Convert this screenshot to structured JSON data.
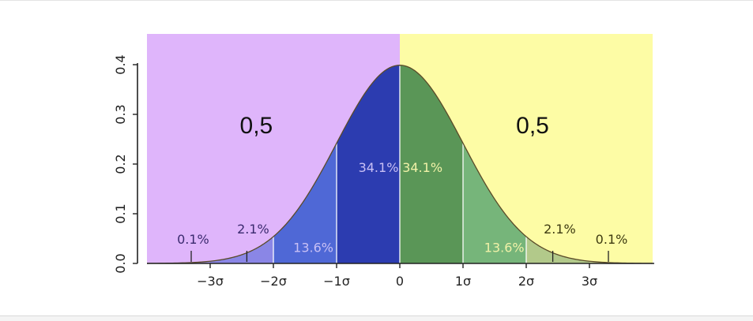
{
  "chart_data": {
    "type": "area",
    "title": "",
    "xlabel": "",
    "ylabel": "",
    "distribution": "standard normal",
    "xlim": [
      -4,
      4
    ],
    "ylim": [
      0,
      0.45
    ],
    "grid": false,
    "x_ticks": [
      {
        "value": -3,
        "label": "−3σ"
      },
      {
        "value": -2,
        "label": "−2σ"
      },
      {
        "value": -1,
        "label": "−1σ"
      },
      {
        "value": 0,
        "label": "0"
      },
      {
        "value": 1,
        "label": "1σ"
      },
      {
        "value": 2,
        "label": "2σ"
      },
      {
        "value": 3,
        "label": "3σ"
      }
    ],
    "y_ticks": [
      {
        "value": 0.0,
        "label": "0.0"
      },
      {
        "value": 0.1,
        "label": "0.1"
      },
      {
        "value": 0.2,
        "label": "0.2"
      },
      {
        "value": 0.3,
        "label": "0.3"
      },
      {
        "value": 0.4,
        "label": "0.4"
      }
    ],
    "halves": [
      {
        "label": "0,5",
        "from": -4,
        "to": 0,
        "color": "#dfb5fb"
      },
      {
        "label": "0,5",
        "from": 0,
        "to": 4,
        "color": "#fdfca5"
      }
    ],
    "bands": [
      {
        "from": -4,
        "to": -3,
        "label": "0.1%",
        "color": "#9b8fd6",
        "label_color": "#3a2a6e"
      },
      {
        "from": -3,
        "to": -2,
        "label": "2.1%",
        "color": "#8a86e6",
        "label_color": "#3a2a6e"
      },
      {
        "from": -2,
        "to": -1,
        "label": "13.6%",
        "color": "#4f68d6",
        "label_color": "#c9c0f5"
      },
      {
        "from": -1,
        "to": 0,
        "label": "34.1%",
        "color": "#2c3cb0",
        "label_color": "#c9c0f5"
      },
      {
        "from": 0,
        "to": 1,
        "label": "34.1%",
        "color": "#5a9657",
        "label_color": "#f1f2a8"
      },
      {
        "from": 1,
        "to": 2,
        "label": "13.6%",
        "color": "#76b57a",
        "label_color": "#f1f2a8"
      },
      {
        "from": 2,
        "to": 3,
        "label": "2.1%",
        "color": "#b2c98a",
        "label_color": "#3d3a10"
      },
      {
        "from": 3,
        "to": 4,
        "label": "0.1%",
        "color": "#c9d294",
        "label_color": "#3d3a10"
      }
    ]
  }
}
